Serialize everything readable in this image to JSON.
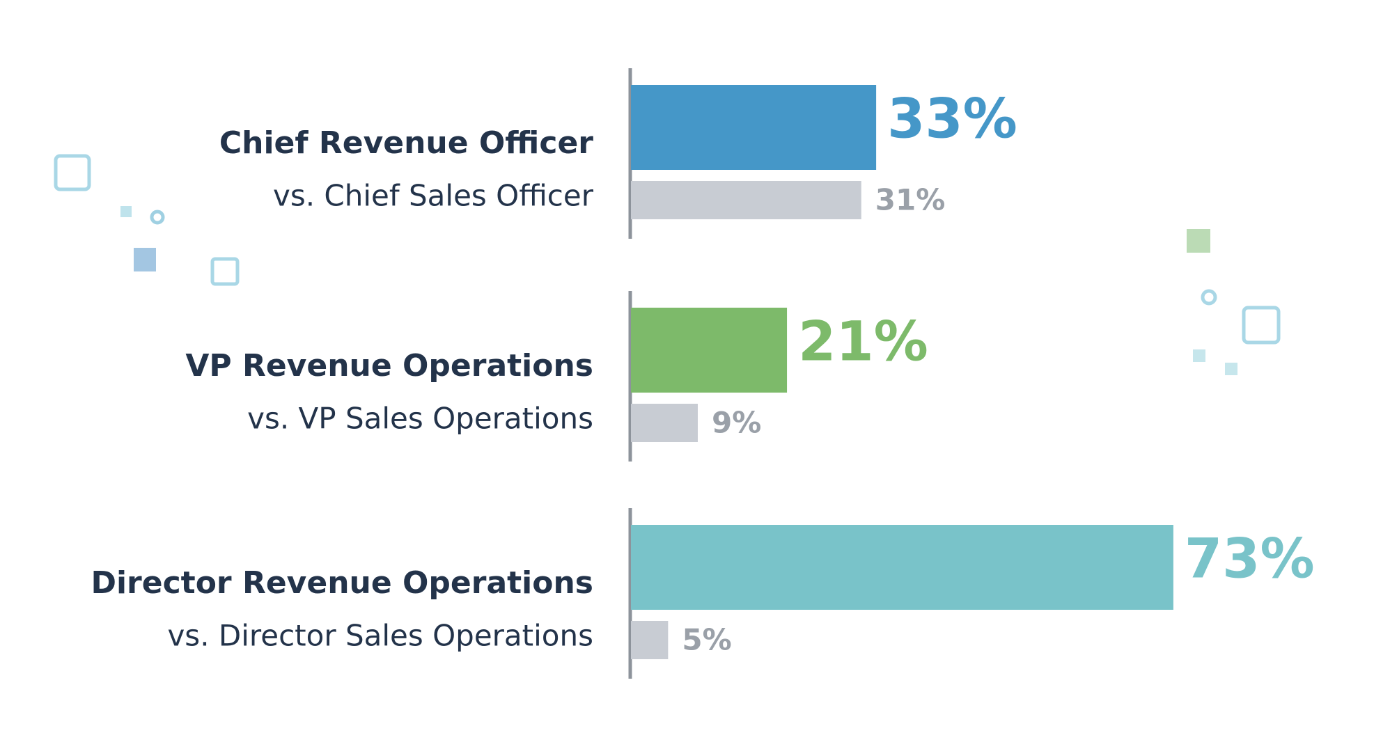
{
  "chart_data": {
    "type": "paired-bar",
    "groups": [
      {
        "label": "Chief Revenue Officer",
        "sublabel": "vs. Chief Sales Officer",
        "values": [
          33,
          31
        ],
        "value_labels": [
          "33%",
          "31%"
        ],
        "color": "#4597c8"
      },
      {
        "label": "VP Revenue Operations",
        "sublabel": "vs. VP Sales Operations",
        "values": [
          21,
          9
        ],
        "value_labels": [
          "21%",
          "9%"
        ],
        "color": "#7dba6a"
      },
      {
        "label": "Director Revenue Operations",
        "sublabel": "vs. Director Sales Operations",
        "values": [
          73,
          5
        ],
        "value_labels": [
          "73%",
          "5%"
        ],
        "color": "#79c3c9"
      }
    ],
    "secondary_color": "#c8ccd3",
    "xlim": [
      0,
      100
    ]
  }
}
